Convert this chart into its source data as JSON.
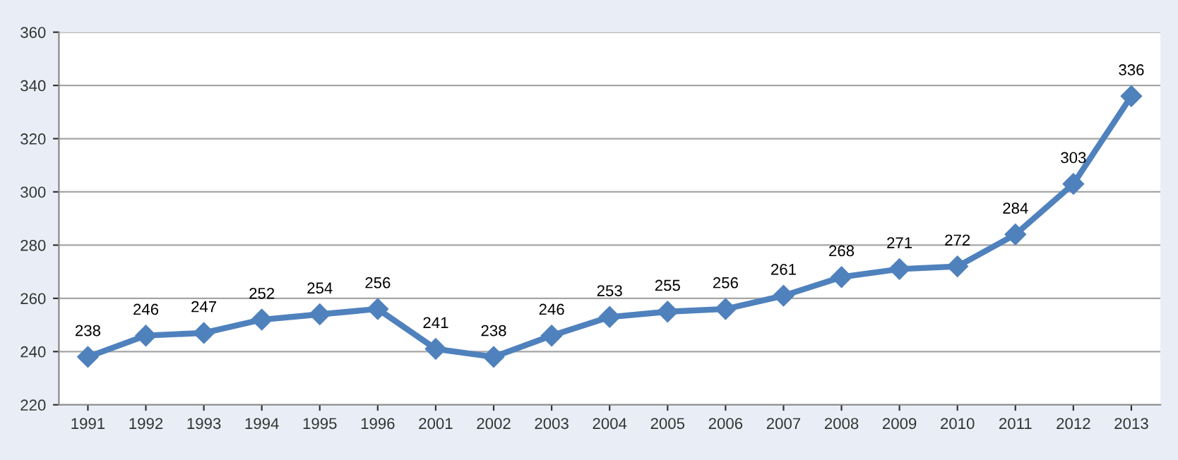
{
  "chart_data": {
    "type": "line",
    "categories": [
      "1991",
      "1992",
      "1993",
      "1994",
      "1995",
      "1996",
      "2001",
      "2002",
      "2003",
      "2004",
      "2005",
      "2006",
      "2007",
      "2008",
      "2009",
      "2010",
      "2011",
      "2012",
      "2013"
    ],
    "series": [
      {
        "color": "#4f81bd",
        "values": [
          238,
          246,
          247,
          252,
          254,
          256,
          241,
          238,
          246,
          253,
          255,
          256,
          261,
          268,
          271,
          272,
          284,
          303,
          336
        ]
      }
    ],
    "ylim": [
      220,
      360
    ],
    "yticks": [
      220,
      240,
      260,
      280,
      300,
      320,
      340,
      360
    ],
    "grid": "y",
    "marker": "diamond",
    "line_style": "solid",
    "data_labels": true
  }
}
